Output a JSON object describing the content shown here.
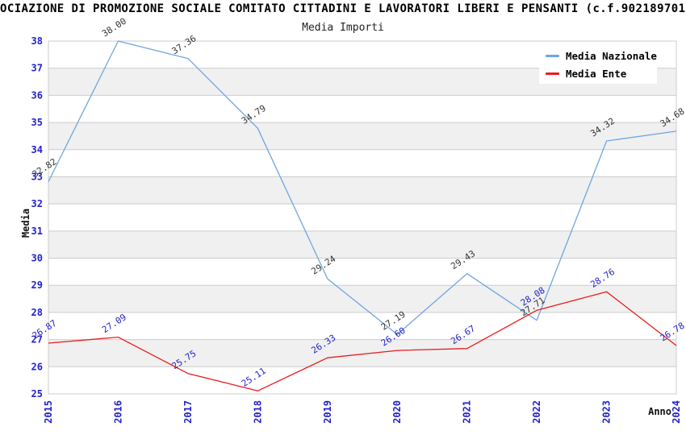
{
  "header": {
    "title": "OCIAZIONE DI PROMOZIONE SOCIALE COMITATO CITTADINI E LAVORATORI LIBERI E PENSANTI (c.f.902189701",
    "subtitle": "Media Importi"
  },
  "legend": {
    "items": [
      {
        "label": "Media Nazionale",
        "color": "#6FA5E0"
      },
      {
        "label": "Media Ente",
        "color": "#EB1C1C"
      }
    ]
  },
  "chart_data": {
    "type": "line",
    "title": "Media Importi",
    "xlabel": "Anno",
    "ylabel": "Media",
    "x": [
      2015,
      2016,
      2017,
      2018,
      2019,
      2020,
      2021,
      2022,
      2023,
      2024
    ],
    "series": [
      {
        "name": "Media Nazionale",
        "color": "#6FA5E0",
        "label_color": "#333333",
        "values": [
          32.82,
          38.0,
          37.36,
          34.79,
          29.24,
          27.19,
          29.43,
          27.71,
          34.32,
          34.68
        ]
      },
      {
        "name": "Media Ente",
        "color": "#EB1C1C",
        "label_color": "#2222CC",
        "values": [
          26.87,
          27.09,
          25.75,
          25.11,
          26.33,
          26.6,
          26.67,
          28.08,
          28.76,
          26.78
        ]
      }
    ],
    "ylim": [
      25,
      38
    ],
    "ytick_step": 1,
    "grid": true,
    "legend_position": "top-right",
    "colors": {
      "tick_label": "#2222CC",
      "grid_line": "#CCCCCC",
      "band_fill": "#F0F0F0",
      "plot_border": "#CCCCCC"
    }
  }
}
